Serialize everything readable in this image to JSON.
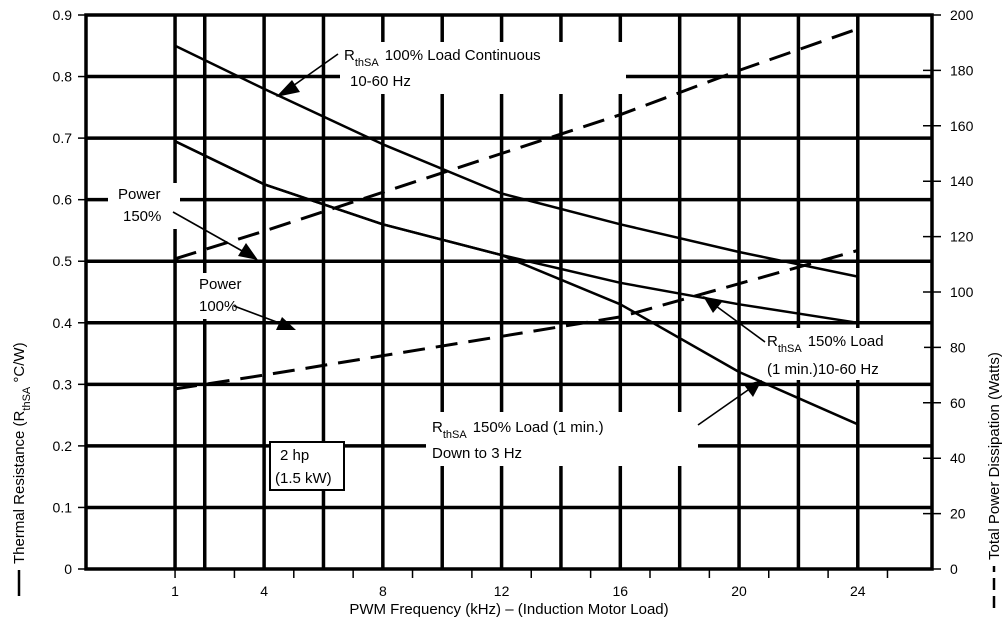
{
  "chart_data": {
    "type": "line",
    "title": "",
    "xlabel": "PWM Frequency (kHz) – (Induction Motor Load)",
    "ylabel_left": "Thermal Resistance (RthSA °C/W)",
    "ylabel_left_parts": {
      "pre": "Thermal Resistance (R",
      "sub": "thSA",
      "post": " °C/W)"
    },
    "ylabel_right": "Total Power Dissipation (Watts)",
    "x_ticks": [
      "1",
      "4",
      "8",
      "12",
      "16",
      "20",
      "24"
    ],
    "y_left_ticks": [
      "0",
      "0.1",
      "0.2",
      "0.3",
      "0.4",
      "0.5",
      "0.6",
      "0.7",
      "0.8",
      "0.9"
    ],
    "y_right_ticks": [
      "0",
      "20",
      "40",
      "60",
      "80",
      "100",
      "120",
      "140",
      "160",
      "180",
      "200"
    ],
    "xlim": [
      -2,
      26.5
    ],
    "ylim_left": [
      0,
      0.9
    ],
    "ylim_right": [
      0,
      200
    ],
    "grid": true,
    "series": [
      {
        "name": "RthSA 100% Load Continuous 10-60 Hz",
        "axis": "left",
        "style": "solid",
        "x": [
          1,
          4,
          8,
          12,
          16,
          20,
          24
        ],
        "y": [
          0.85,
          0.78,
          0.69,
          0.61,
          0.56,
          0.515,
          0.475
        ]
      },
      {
        "name": "RthSA 150% Load (1 min.) 10-60 Hz",
        "axis": "left",
        "style": "solid",
        "x": [
          1,
          4,
          8,
          12,
          16,
          20,
          24
        ],
        "y": [
          0.695,
          0.625,
          0.56,
          0.51,
          0.465,
          0.43,
          0.4
        ]
      },
      {
        "name": "RthSA 150% Load (1 min.) Down to 3 Hz",
        "axis": "left",
        "style": "solid",
        "x": [
          1,
          4,
          8,
          12,
          16,
          20,
          24
        ],
        "y": [
          0.695,
          0.625,
          0.56,
          0.51,
          0.43,
          0.32,
          0.235
        ]
      },
      {
        "name": "Power 150%",
        "axis": "right",
        "style": "dashed",
        "x": [
          1,
          4,
          8,
          12,
          16,
          20,
          24
        ],
        "y": [
          112,
          122,
          136,
          150,
          164,
          180,
          195
        ]
      },
      {
        "name": "Power 100%",
        "axis": "right",
        "style": "dashed",
        "x": [
          1,
          4,
          8,
          12,
          16,
          20,
          24
        ],
        "y": [
          65,
          70,
          77,
          84,
          91,
          103,
          115
        ]
      }
    ],
    "annotations": {
      "r100": {
        "sub": "thSA",
        "line1": "100% Load Continuous",
        "line2": "10-60 Hz"
      },
      "power150": {
        "line1": "Power",
        "line2": "150%"
      },
      "power100": {
        "line1": "Power",
        "line2": "100%"
      },
      "r150_1060": {
        "sub": "thSA",
        "line1": "150% Load",
        "line2": "(1 min.)10-60 Hz"
      },
      "r150_3hz": {
        "sub": "thSA",
        "line1": "150% Load (1 min.)",
        "line2": "Down to 3 Hz"
      },
      "device": {
        "line1": "2 hp",
        "line2": "(1.5 kW)"
      }
    }
  }
}
